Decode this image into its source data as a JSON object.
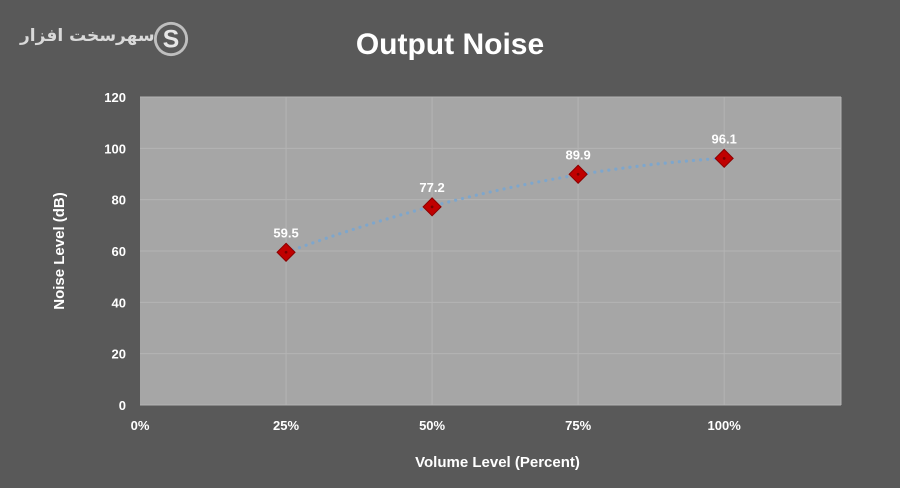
{
  "brand": {
    "logo_text": "سخت افزار",
    "logo_text_main": "سهر",
    "logo_letter": "S"
  },
  "colors": {
    "background": "#595959",
    "plot_area": "#a6a6a6",
    "gridline": "#b4b4b4",
    "text": "#ffffff",
    "marker": "#c00000",
    "trendline": "#7ea6cc"
  },
  "chart_data": {
    "type": "scatter",
    "title": "Output Noise",
    "xlabel": "Volume Level (Percent)",
    "ylabel": "Noise Level (dB)",
    "xlim": [
      0,
      1.2
    ],
    "ylim": [
      0,
      120
    ],
    "x_ticks": [
      0,
      0.25,
      0.5,
      0.75,
      1.0
    ],
    "x_tick_labels": [
      "0%",
      "25%",
      "50%",
      "75%",
      "100%"
    ],
    "y_ticks": [
      0,
      20,
      40,
      60,
      80,
      100,
      120
    ],
    "y_tick_labels": [
      "0",
      "20",
      "40",
      "60",
      "80",
      "100",
      "120"
    ],
    "grid": true,
    "trendline": "dotted polynomial",
    "series": [
      {
        "x": [
          0.25,
          0.5,
          0.75,
          1.0
        ],
        "y": [
          59.5,
          77.2,
          89.9,
          96.1
        ],
        "labels": [
          "59.5",
          "77.2",
          "89.9",
          "96.1"
        ],
        "marker": "diamond"
      }
    ]
  }
}
